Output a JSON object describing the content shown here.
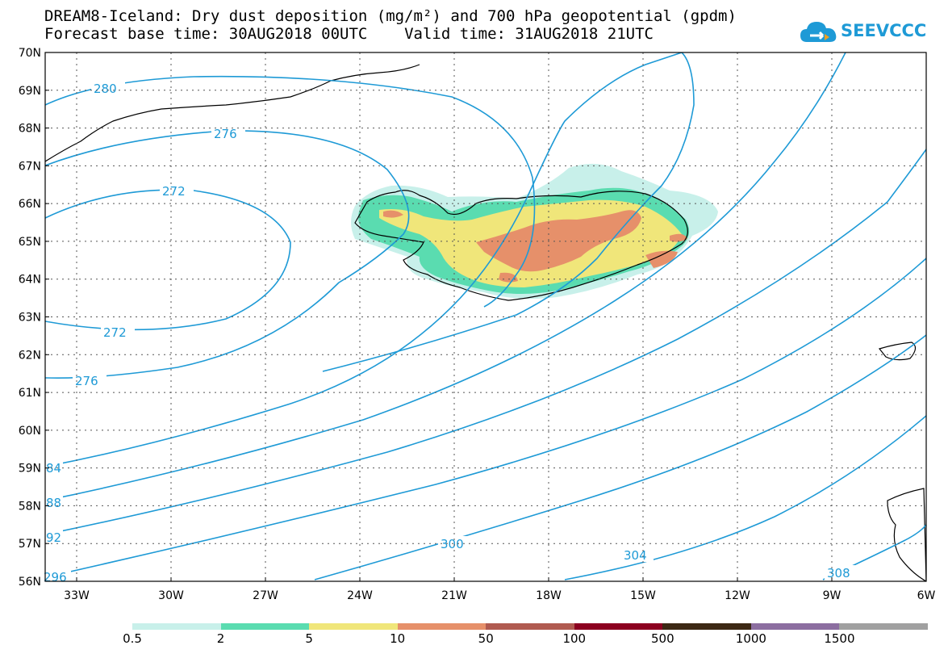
{
  "title": {
    "line1": "DREAM8-Iceland: Dry dust deposition (mg/m²) and 700 hPa geopotential (gpdm)",
    "line2": "Forecast base time: 30AUG2018 00UTC    Valid time: 31AUG2018 21UTC"
  },
  "logo": {
    "text": "SEEVCCC",
    "icon": "cloud-icon"
  },
  "map": {
    "lat_labels": [
      "70N",
      "69N",
      "68N",
      "67N",
      "66N",
      "65N",
      "64N",
      "63N",
      "62N",
      "61N",
      "60N",
      "59N",
      "58N",
      "57N",
      "56N"
    ],
    "lon_labels": [
      "33W",
      "30W",
      "27W",
      "24W",
      "21W",
      "18W",
      "15W",
      "12W",
      "9W",
      "6W"
    ],
    "lat_range": [
      56,
      70
    ],
    "lon_range": [
      -34,
      -6
    ],
    "contour_color": "#1e9ad6",
    "contour_labels": [
      "280",
      "276",
      "272",
      "272",
      "276",
      "84",
      "88",
      "92",
      "296",
      "300",
      "304",
      "308"
    ]
  },
  "legend": {
    "labels": [
      "0.5",
      "2",
      "5",
      "10",
      "50",
      "100",
      "500",
      "1000",
      "1500"
    ],
    "colors": [
      "#c8f0ea",
      "#5adcb0",
      "#f0e67a",
      "#e6906a",
      "#b05a50",
      "#8c0020",
      "#3c2814",
      "#8c6ea0",
      "#a0a0a0"
    ]
  }
}
